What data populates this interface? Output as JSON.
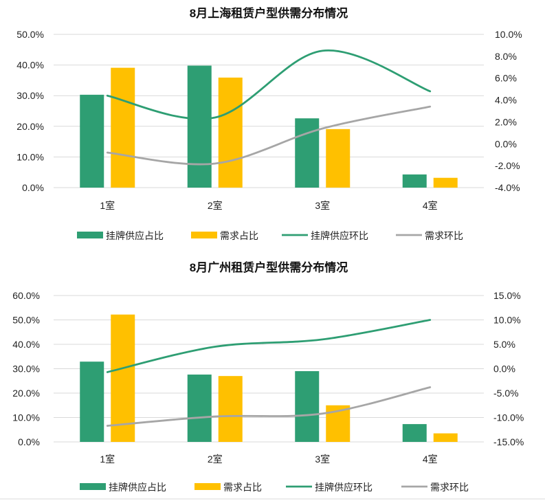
{
  "colors": {
    "supply": "#2e9e73",
    "demand": "#ffc000",
    "supply_mom": "#2e9e73",
    "demand_mom": "#a6a6a6"
  },
  "chart_data": [
    {
      "type": "bar+line",
      "title": "8月上海租赁户型供需分布情况",
      "categories": [
        "1室",
        "2室",
        "3室",
        "4室"
      ],
      "y_left": {
        "min": 0,
        "max": 50,
        "step": 10,
        "ticks": [
          "0.0%",
          "10.0%",
          "20.0%",
          "30.0%",
          "40.0%",
          "50.0%"
        ]
      },
      "y_right": {
        "min": -4,
        "max": 10,
        "step": 2,
        "ticks": [
          "-4.0%",
          "-2.0%",
          "0.0%",
          "2.0%",
          "4.0%",
          "6.0%",
          "8.0%",
          "10.0%"
        ]
      },
      "bars": [
        {
          "name": "挂牌供应占比",
          "color_key": "supply",
          "values": [
            30.3,
            39.8,
            22.6,
            4.3
          ]
        },
        {
          "name": "需求占比",
          "color_key": "demand",
          "values": [
            39.1,
            35.9,
            19.1,
            3.2
          ]
        }
      ],
      "lines": [
        {
          "name": "挂牌供应环比",
          "color_key": "supply_mom",
          "values": [
            4.4,
            2.4,
            8.5,
            4.8
          ]
        },
        {
          "name": "需求环比",
          "color_key": "demand_mom",
          "values": [
            -0.8,
            -1.8,
            1.4,
            3.4
          ]
        }
      ],
      "legend": [
        "挂牌供应占比",
        "需求占比",
        "挂牌供应环比",
        "需求环比"
      ]
    },
    {
      "type": "bar+line",
      "title": "8月广州租赁户型供需分布情况",
      "categories": [
        "1室",
        "2室",
        "3室",
        "4室"
      ],
      "y_left": {
        "min": 0,
        "max": 60,
        "step": 10,
        "ticks": [
          "0.0%",
          "10.0%",
          "20.0%",
          "30.0%",
          "40.0%",
          "50.0%",
          "60.0%"
        ]
      },
      "y_right": {
        "min": -15,
        "max": 15,
        "step": 5,
        "ticks": [
          "-15.0%",
          "-10.0%",
          "-5.0%",
          "0.0%",
          "5.0%",
          "10.0%",
          "15.0%"
        ]
      },
      "bars": [
        {
          "name": "挂牌供应占比",
          "color_key": "supply",
          "values": [
            32.9,
            27.6,
            29.0,
            7.3
          ]
        },
        {
          "name": "需求占比",
          "color_key": "demand",
          "values": [
            52.2,
            27.0,
            15.0,
            3.5
          ]
        }
      ],
      "lines": [
        {
          "name": "挂牌供应环比",
          "color_key": "supply_mom",
          "values": [
            -0.7,
            4.5,
            6.0,
            10.0
          ]
        },
        {
          "name": "需求环比",
          "color_key": "demand_mom",
          "values": [
            -11.7,
            -9.8,
            -9.2,
            -3.8
          ]
        }
      ],
      "legend": [
        "挂牌供应占比",
        "需求占比",
        "挂牌供应环比",
        "需求环比"
      ]
    }
  ]
}
